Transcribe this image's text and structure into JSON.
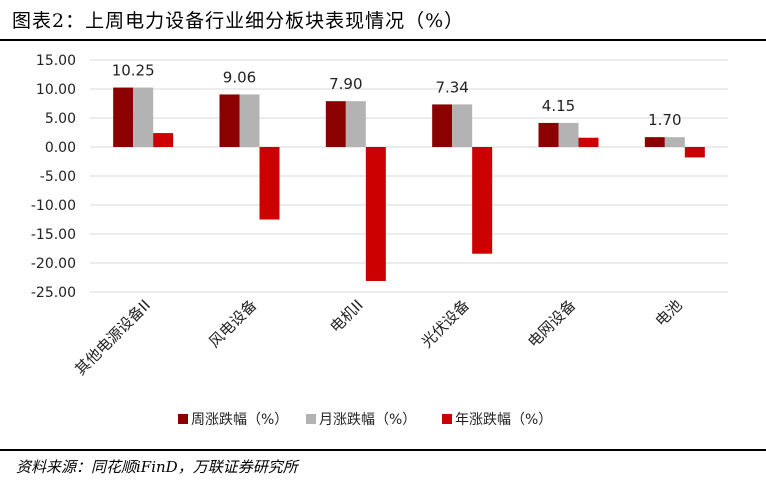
{
  "title": "图表2：上周电力设备行业细分板块表现情况（%）",
  "source": "资料来源：同花顺iFinD，万联证券研究所",
  "colors": {
    "week": "#8b0000",
    "month": "#b3b3b3",
    "year": "#cc0000",
    "grid": "#d9d9d9"
  },
  "chart_data": {
    "type": "bar",
    "categories": [
      "其他电源设备II",
      "风电设备",
      "电机II",
      "光伏设备",
      "电网设备",
      "电池"
    ],
    "series": [
      {
        "name": "周涨跌幅（%）",
        "values": [
          10.25,
          9.06,
          7.9,
          7.34,
          4.15,
          1.7
        ],
        "labels": [
          "10.25",
          "9.06",
          "7.90",
          "7.34",
          "4.15",
          "1.70"
        ]
      },
      {
        "name": "月涨跌幅（%）",
        "values": [
          10.25,
          9.06,
          7.9,
          7.34,
          4.15,
          1.7
        ]
      },
      {
        "name": "年涨跌幅（%）",
        "values": [
          2.4,
          -12.5,
          -23.1,
          -18.4,
          1.6,
          -1.8
        ]
      }
    ],
    "ylim": [
      -25,
      15
    ],
    "yticks": [
      "15.00",
      "10.00",
      "5.00",
      "0.00",
      "-5.00",
      "-10.00",
      "-15.00",
      "-20.00",
      "-25.00"
    ],
    "ytick_values": [
      15,
      10,
      5,
      0,
      -5,
      -10,
      -15,
      -20,
      -25
    ],
    "grid": true,
    "legend_position": "bottom"
  }
}
